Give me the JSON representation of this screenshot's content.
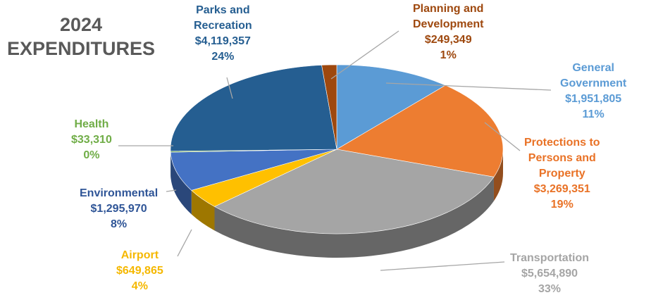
{
  "chart_data": {
    "type": "pie",
    "title_lines": [
      "2024",
      "EXPENDITURES"
    ],
    "slices": [
      {
        "name": "General Government",
        "name_lines": [
          "General",
          "Government"
        ],
        "value": 1951805,
        "value_label": "$1,951,805",
        "percent": "11%",
        "color": "#5B9BD5",
        "label_color": "#5B9BD5"
      },
      {
        "name": "Protections to Persons and Property",
        "name_lines": [
          "Protections to",
          "Persons and",
          "Property"
        ],
        "value": 3269351,
        "value_label": "$3,269,351",
        "percent": "19%",
        "color": "#ED7D31",
        "label_color": "#E97226"
      },
      {
        "name": "Transportation",
        "name_lines": [
          "Transportation"
        ],
        "value": 5654890,
        "value_label": "$5,654,890",
        "percent": "33%",
        "color": "#A5A5A5",
        "label_color": "#A5A5A5"
      },
      {
        "name": "Airport",
        "name_lines": [
          "Airport"
        ],
        "value": 649865,
        "value_label": "$649,865",
        "percent": "4%",
        "color": "#FFC000",
        "label_color": "#F5B800"
      },
      {
        "name": "Environmental",
        "name_lines": [
          "Environmental"
        ],
        "value": 1295970,
        "value_label": "$1,295,970",
        "percent": "8%",
        "color": "#4472C4",
        "label_color": "#2F5597"
      },
      {
        "name": "Health",
        "name_lines": [
          "Health"
        ],
        "value": 33310,
        "value_label": "$33,310",
        "percent": "0%",
        "color": "#70AD47",
        "label_color": "#70AD47"
      },
      {
        "name": "Parks and Recreation",
        "name_lines": [
          "Parks and",
          "Recreation"
        ],
        "value": 4119357,
        "value_label": "$4,119,357",
        "percent": "24%",
        "color": "#255E91",
        "label_color": "#255E91"
      },
      {
        "name": "Planning and Development",
        "name_lines": [
          "Planning and",
          "Development"
        ],
        "value": 249349,
        "value_label": "$249,349",
        "percent": "1%",
        "color": "#9E480E",
        "label_color": "#9E480E"
      }
    ]
  }
}
